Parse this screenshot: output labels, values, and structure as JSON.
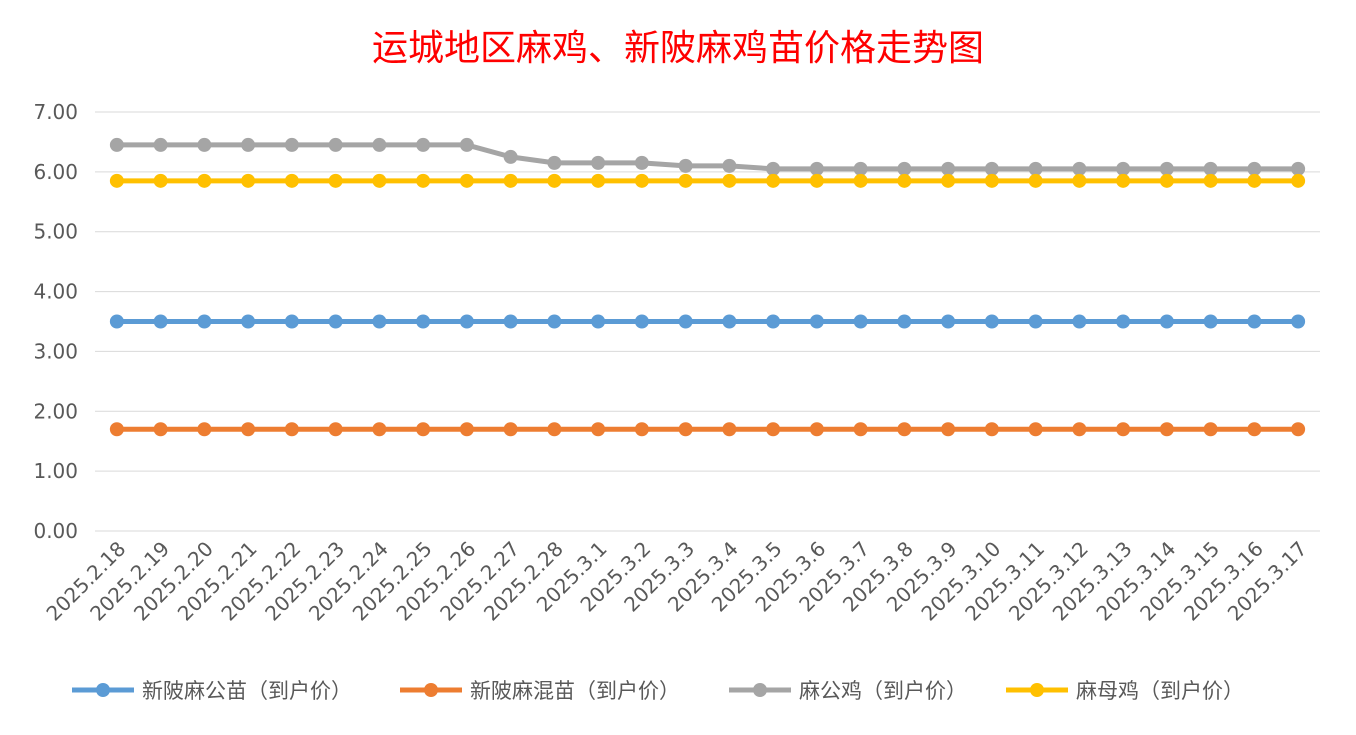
{
  "chart_data": {
    "type": "line",
    "title": "运城地区麻鸡、新陂麻鸡苗价格走势图",
    "xlabel": "",
    "ylabel": "",
    "ylim": [
      0,
      7
    ],
    "y_ticks": [
      "0.00",
      "1.00",
      "2.00",
      "3.00",
      "4.00",
      "5.00",
      "6.00",
      "7.00"
    ],
    "grid": "horizontal",
    "legend_position": "bottom",
    "categories": [
      "2025.2.18",
      "2025.2.19",
      "2025.2.20",
      "2025.2.21",
      "2025.2.22",
      "2025.2.23",
      "2025.2.24",
      "2025.2.25",
      "2025.2.26",
      "2025.2.27",
      "2025.2.28",
      "2025.3.1",
      "2025.3.2",
      "2025.3.3",
      "2025.3.4",
      "2025.3.5",
      "2025.3.6",
      "2025.3.7",
      "2025.3.8",
      "2025.3.9",
      "2025.3.10",
      "2025.3.11",
      "2025.3.12",
      "2025.3.13",
      "2025.3.14",
      "2025.3.15",
      "2025.3.16",
      "2025.3.17"
    ],
    "series": [
      {
        "name": "新陂麻公苗（到户价）",
        "color": "#5b9bd5",
        "values": [
          3.5,
          3.5,
          3.5,
          3.5,
          3.5,
          3.5,
          3.5,
          3.5,
          3.5,
          3.5,
          3.5,
          3.5,
          3.5,
          3.5,
          3.5,
          3.5,
          3.5,
          3.5,
          3.5,
          3.5,
          3.5,
          3.5,
          3.5,
          3.5,
          3.5,
          3.5,
          3.5,
          3.5
        ]
      },
      {
        "name": "新陂麻混苗（到户价）",
        "color": "#ed7d31",
        "values": [
          1.7,
          1.7,
          1.7,
          1.7,
          1.7,
          1.7,
          1.7,
          1.7,
          1.7,
          1.7,
          1.7,
          1.7,
          1.7,
          1.7,
          1.7,
          1.7,
          1.7,
          1.7,
          1.7,
          1.7,
          1.7,
          1.7,
          1.7,
          1.7,
          1.7,
          1.7,
          1.7,
          1.7
        ]
      },
      {
        "name": "麻公鸡（到户价）",
        "color": "#a5a5a5",
        "values": [
          6.45,
          6.45,
          6.45,
          6.45,
          6.45,
          6.45,
          6.45,
          6.45,
          6.45,
          6.25,
          6.15,
          6.15,
          6.15,
          6.1,
          6.1,
          6.05,
          6.05,
          6.05,
          6.05,
          6.05,
          6.05,
          6.05,
          6.05,
          6.05,
          6.05,
          6.05,
          6.05,
          6.05
        ]
      },
      {
        "name": "麻母鸡（到户价）",
        "color": "#ffc000",
        "values": [
          5.85,
          5.85,
          5.85,
          5.85,
          5.85,
          5.85,
          5.85,
          5.85,
          5.85,
          5.85,
          5.85,
          5.85,
          5.85,
          5.85,
          5.85,
          5.85,
          5.85,
          5.85,
          5.85,
          5.85,
          5.85,
          5.85,
          5.85,
          5.85,
          5.85,
          5.85,
          5.85,
          5.85
        ]
      }
    ]
  }
}
